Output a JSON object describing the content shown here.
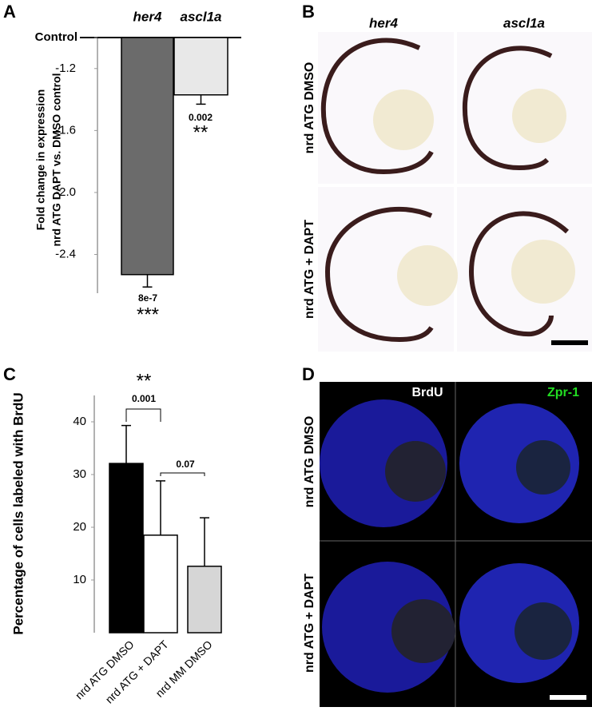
{
  "panel_labels": [
    "A",
    "B",
    "C",
    "D"
  ],
  "chart_data": [
    {
      "type": "bar",
      "categories": [
        "her4",
        "ascl1a"
      ],
      "values": [
        -2.53,
        -1.37
      ],
      "errors": [
        0.08,
        0.06
      ],
      "colors": [
        "#6b6b6b",
        "#e8e8e8"
      ],
      "ylabel": [
        "Fold change in expression",
        "nrd ATG  DAPT vs. DMSO control"
      ],
      "ylim": [
        -2.65,
        -1.0
      ],
      "yticks": [
        {
          "value": -1.0,
          "label": "Control"
        },
        -1.2,
        -1.6,
        {
          "value": -2.0,
          "label": "-2.0"
        },
        -2.4
      ],
      "annotations": [
        "8e-7",
        "***",
        "0.002",
        "**"
      ]
    },
    {
      "type": "bar",
      "categories": [
        "nrd ATG DMSO",
        "nrd ATG + DAPT",
        "nrd MM DMSO"
      ],
      "values": [
        32.1,
        18.5,
        12.6
      ],
      "errors": [
        7.2,
        10.3,
        9.2
      ],
      "colors": [
        "#000000",
        "#ffffff",
        "#d6d6d6"
      ],
      "ylabel": [
        "Percentage of cells labeled with BrdU"
      ],
      "ylim": [
        0,
        45
      ],
      "yticks": [
        10,
        20,
        30,
        40
      ],
      "annotations": [
        "**",
        "0.001",
        "0.07"
      ]
    }
  ],
  "panel_b": {
    "columns": [
      "her4",
      "ascl1a"
    ],
    "rows": [
      "nrd ATG DMSO",
      "nrd ATG + DAPT"
    ]
  },
  "panel_d": {
    "columns": [
      "BrdU",
      "Zpr-1"
    ],
    "rows": [
      "nrd ATG DMSO",
      "nrd ATG + DAPT"
    ]
  }
}
